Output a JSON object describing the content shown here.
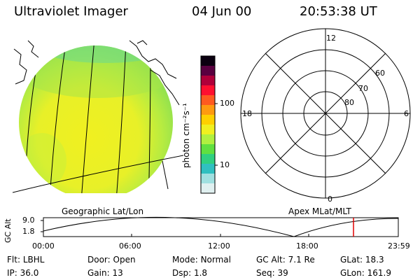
{
  "header": {
    "instrument": "Ultraviolet Imager",
    "date": "04 Jun 00",
    "time": "20:53:38 UT"
  },
  "image_panel": {
    "label": "Geographic Lat/Lon",
    "description": "false-color ultraviolet image of Earth disk with geographic grid and coastlines"
  },
  "colorbar": {
    "unit_label": "photon cm⁻²s⁻¹",
    "tick_labels": [
      "100",
      "10"
    ],
    "colors": [
      "#0b0010",
      "#5a0040",
      "#b0003a",
      "#ff1030",
      "#ff5a20",
      "#ff9a10",
      "#ffd000",
      "#f0f020",
      "#b0f040",
      "#60e040",
      "#30d080",
      "#30c0c0",
      "#a0e0e0",
      "#e0f0f0"
    ]
  },
  "polar_plot": {
    "label": "Apex MLat/MLT",
    "mlt_labels": {
      "top": "12",
      "left": "18",
      "right": "6",
      "bottom": "0"
    },
    "mlat_labels": [
      "60",
      "70",
      "80"
    ]
  },
  "altitude_plot": {
    "y_label": "GC Alt",
    "y_ticks": [
      "9.0",
      "1.8"
    ],
    "x_ticks": [
      "00:00",
      "06:00",
      "12:00",
      "18:00",
      "23:59"
    ],
    "marker_color": "#e00000"
  },
  "footer": {
    "row1": [
      {
        "key": "Flt:",
        "value": "LBHL"
      },
      {
        "key": "Door:",
        "value": "Open"
      },
      {
        "key": "Mode:",
        "value": "Normal"
      },
      {
        "key": "GC Alt:",
        "value": "7.1 Re"
      },
      {
        "key": "GLat:",
        "value": "18.3"
      }
    ],
    "row2": [
      {
        "key": "IP:",
        "value": "36.0"
      },
      {
        "key": "Gain:",
        "value": "13"
      },
      {
        "key": "Dsp:",
        "value": "1.8"
      },
      {
        "key": "Seq:",
        "value": "39"
      },
      {
        "key": "GLon:",
        "value": "161.9"
      }
    ]
  }
}
